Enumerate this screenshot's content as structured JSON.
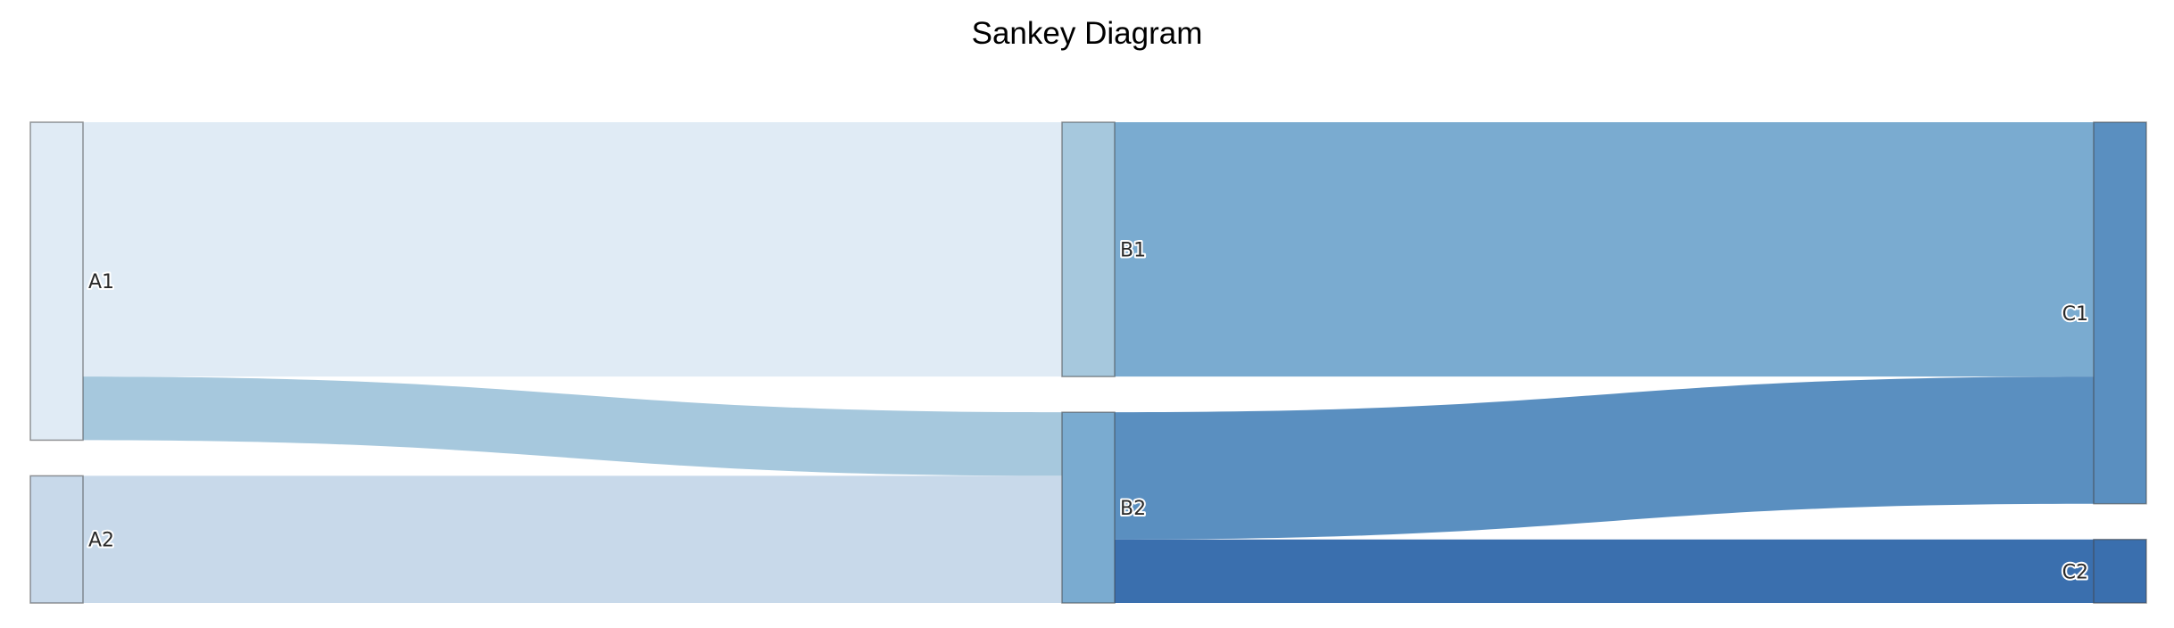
{
  "title": "Sankey Diagram",
  "chart_data": {
    "type": "sankey",
    "title": "Sankey Diagram",
    "nodes": [
      {
        "label": "A1",
        "column": 0,
        "color": "#e0ebf5"
      },
      {
        "label": "A2",
        "column": 0,
        "color": "#c8d9ea"
      },
      {
        "label": "B1",
        "column": 1,
        "color": "#a6c8dd"
      },
      {
        "label": "B2",
        "column": 1,
        "color": "#7aabd0"
      },
      {
        "label": "C1",
        "column": 2,
        "color": "#5a8fc0"
      },
      {
        "label": "C2",
        "column": 2,
        "color": "#3a6fae"
      }
    ],
    "links": [
      {
        "source": "A1",
        "target": "B1",
        "value": 8,
        "color": "#e0ebf5"
      },
      {
        "source": "A1",
        "target": "B2",
        "value": 2,
        "color": "#a6c8dd"
      },
      {
        "source": "A2",
        "target": "B2",
        "value": 4,
        "color": "#c8d9ea"
      },
      {
        "source": "B1",
        "target": "C1",
        "value": 8,
        "color": "#7aabd0"
      },
      {
        "source": "B2",
        "target": "C1",
        "value": 4,
        "color": "#5a8fc0"
      },
      {
        "source": "B2",
        "target": "C2",
        "value": 2,
        "color": "#3a6fae"
      }
    ]
  }
}
